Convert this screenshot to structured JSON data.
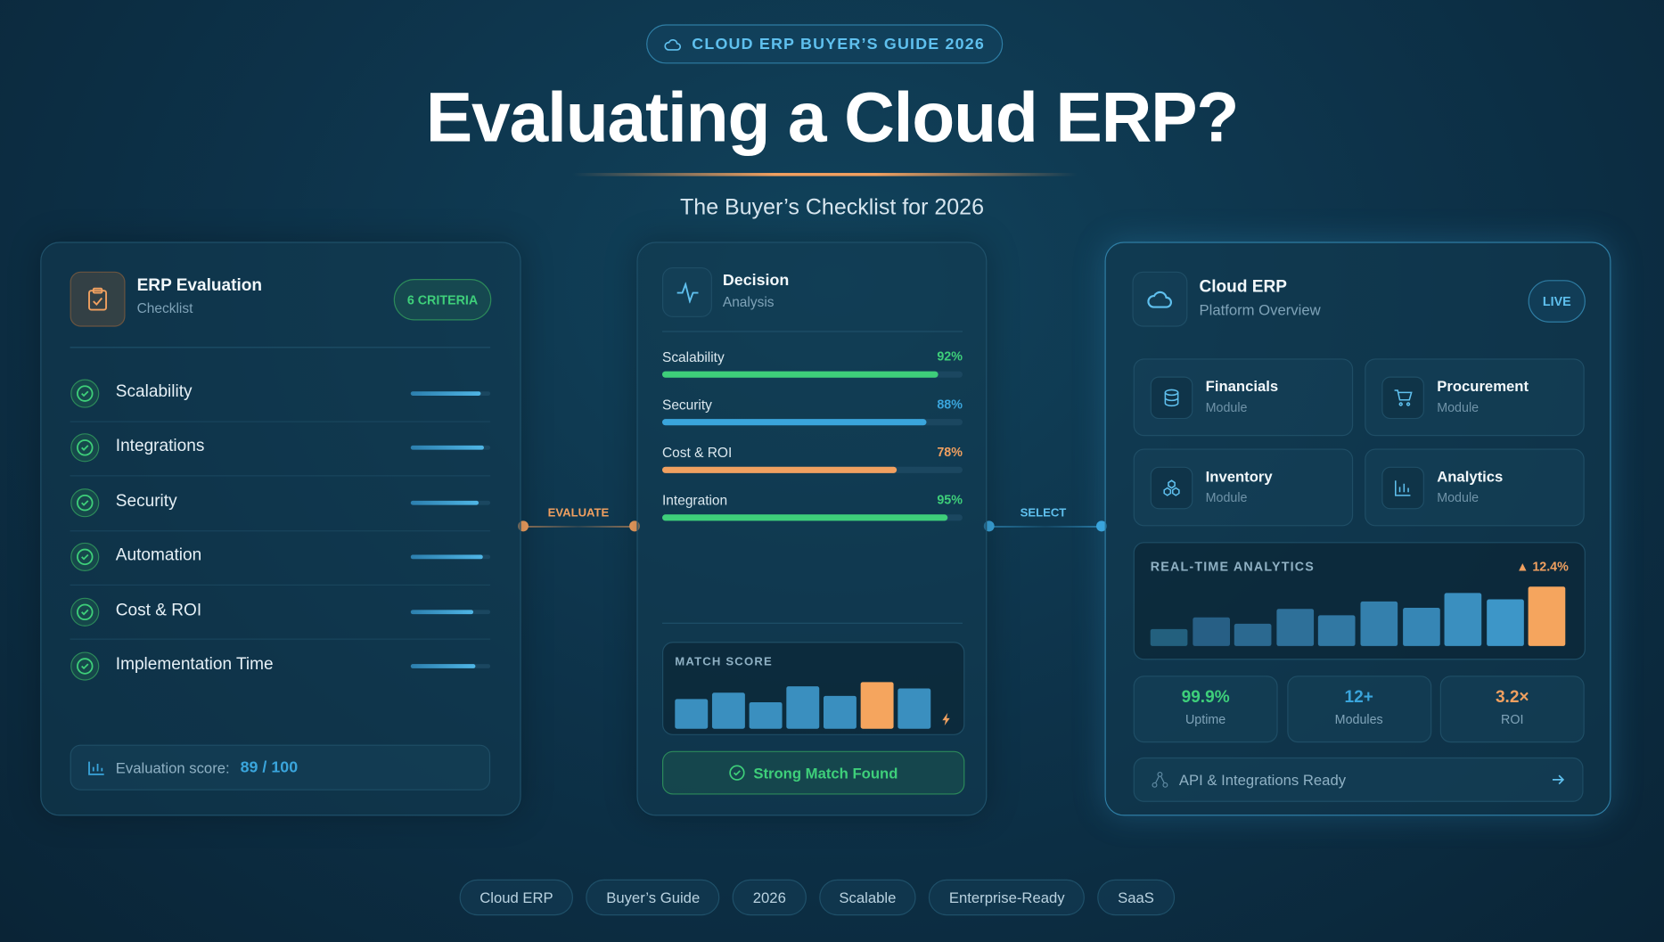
{
  "badge": "CLOUD ERP BUYER’S GUIDE 2026",
  "title": "Evaluating a Cloud ERP?",
  "subtitle": "The Buyer’s Checklist for 2026",
  "evaluation": {
    "title": "ERP Evaluation",
    "subtitle": "Checklist",
    "badge": "6 CRITERIA",
    "criteria": [
      {
        "label": "Scalability",
        "score": 88
      },
      {
        "label": "Integrations",
        "score": 92
      },
      {
        "label": "Security",
        "score": 85
      },
      {
        "label": "Automation",
        "score": 91
      },
      {
        "label": "Cost & ROI",
        "score": 79
      },
      {
        "label": "Implementation Time",
        "score": 81
      }
    ],
    "score_label": "Evaluation score:",
    "score": "89 / 100"
  },
  "connectors": [
    "EVALUATE",
    "SELECT"
  ],
  "decision": {
    "title": "Decision",
    "subtitle": "Analysis",
    "metrics": [
      {
        "label": "Scalability",
        "value": 92,
        "value_label": "92%",
        "color": "#3ecf7a"
      },
      {
        "label": "Security",
        "value": 88,
        "value_label": "88%",
        "color": "#3aa5dc"
      },
      {
        "label": "Cost & ROI",
        "value": 78,
        "value_label": "78%",
        "color": "#f0a060"
      },
      {
        "label": "Integration",
        "value": 95,
        "value_label": "95%",
        "color": "#3ecf7a"
      }
    ],
    "match_score": {
      "label": "MATCH SCORE",
      "bars": [
        56,
        68,
        50,
        80,
        62,
        88,
        76
      ],
      "colors": [
        "#3a8fbf",
        "#3a8fbf",
        "#3a8fbf",
        "#3a8fbf",
        "#3a8fbf",
        "#f5a55e",
        "#3a8fbf"
      ]
    },
    "result": "Strong Match Found"
  },
  "platform": {
    "title": "Cloud ERP",
    "subtitle": "Platform Overview",
    "status": "LIVE",
    "modules": [
      {
        "name": "Financials",
        "type": "Module"
      },
      {
        "name": "Procurement",
        "type": "Module"
      },
      {
        "name": "Inventory",
        "type": "Module"
      },
      {
        "name": "Analytics",
        "type": "Module"
      }
    ],
    "analytics": {
      "label": "REAL-TIME ANALYTICS",
      "change": "▲ 12.4%",
      "bars": [
        27,
        45,
        35,
        58,
        48,
        70,
        60,
        83,
        73,
        93
      ],
      "colors": [
        "#23607e",
        "#275f85",
        "#2b6990",
        "#2e7099",
        "#3178a3",
        "#3480ad",
        "#3686b5",
        "#3a8fbf",
        "#3d96c8",
        "#f5a55e"
      ]
    },
    "stats": [
      {
        "value": "99.9%",
        "label": "Uptime",
        "color": "#3ecf7a"
      },
      {
        "value": "12+",
        "label": "Modules",
        "color": "#3aa5dc"
      },
      {
        "value": "3.2×",
        "label": "ROI",
        "color": "#f0a060"
      }
    ],
    "footer": "API & Integrations Ready"
  },
  "tags": [
    "Cloud ERP",
    "Buyer’s Guide",
    "2026",
    "Scalable",
    "Enterprise-Ready",
    "SaaS"
  ]
}
